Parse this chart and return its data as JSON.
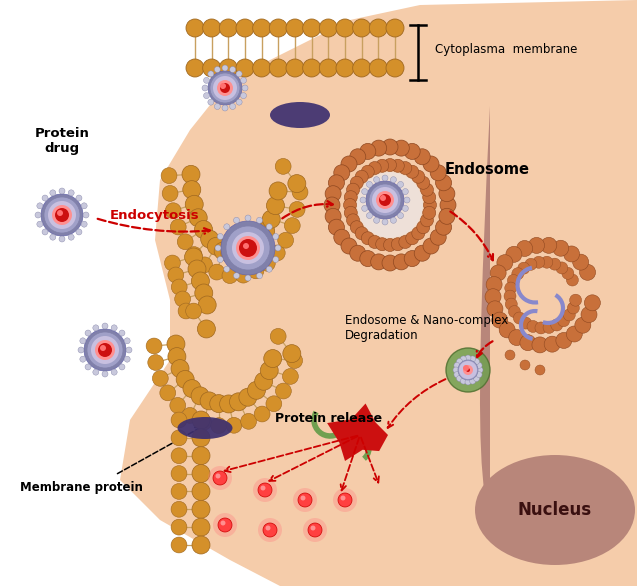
{
  "bg_color": "#FFFFFF",
  "cell_color": "#F5CCAA",
  "nucleus_color": "#B8867A",
  "lc": "#D4902A",
  "dk": "#A06820",
  "tc": "#C8A060",
  "mp_color": "#3D3070",
  "endo_color": "#C8703A",
  "nano_shell": "#7A7AAA",
  "nano_inner": "#9898C0",
  "nano_mid": "#B0AACE",
  "core_bright": "#FF8888",
  "core_dark": "#CC1010",
  "green_col": "#70A050",
  "blue_col": "#8888CC",
  "arrow_col": "#CC0000",
  "labels": {
    "cytoplasma_membrane": "Cytoplasma  membrane",
    "endosome": "Endosome",
    "endocytosis": "Endocytosis",
    "endo_deg": "Endosome & Nano-complex\nDegradation",
    "prot_release": "Protein release",
    "protein_drug": "Protein\ndrug",
    "membrane_protein": "Membrane protein",
    "nucleus": "Nucleus"
  }
}
